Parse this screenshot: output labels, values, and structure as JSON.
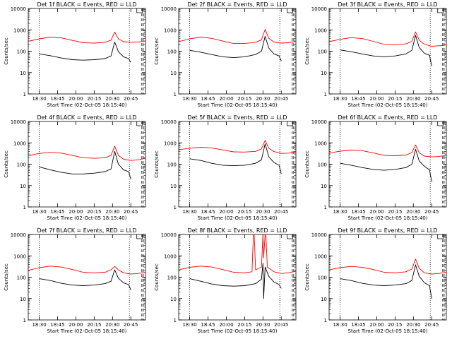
{
  "window": {
    "title": ""
  },
  "chart_data": [
    {
      "type": "line",
      "title": "Det 1f BLACK = Events, RED = LLD",
      "ylabel": "Counts/sec",
      "xlabel": "Start Time (02-Oct-05 18:15:40)",
      "yscale": "log",
      "ylim": [
        1,
        10000
      ],
      "yticks": [
        "1",
        "10",
        "100",
        "1000",
        "10000"
      ],
      "xticks": [
        "18:30",
        "18:45",
        "20:00",
        "20:15",
        "20:30",
        "20:45"
      ],
      "xlim": [
        "18:15",
        "20:55"
      ],
      "grid": false,
      "series": [
        {
          "name": "Events",
          "color": "#000000",
          "x": [
            "18:30",
            "18:45",
            "19:00",
            "19:15",
            "19:30",
            "19:45",
            "20:00",
            "20:08",
            "20:13",
            "20:18",
            "20:25",
            "20:32",
            "20:35"
          ],
          "y": [
            75,
            62,
            48,
            40,
            38,
            40,
            45,
            60,
            270,
            95,
            55,
            45,
            30
          ]
        },
        {
          "name": "LLD",
          "color": "#ff0000",
          "x": [
            "18:15",
            "18:30",
            "18:45",
            "19:00",
            "19:15",
            "19:30",
            "19:45",
            "20:00",
            "20:08",
            "20:13",
            "20:18",
            "20:25",
            "20:35",
            "20:45",
            "20:55"
          ],
          "y": [
            290,
            380,
            460,
            420,
            320,
            250,
            240,
            260,
            330,
            780,
            380,
            280,
            260,
            270,
            300
          ]
        }
      ],
      "vlines_dotted": [
        "18:30",
        "20:33"
      ],
      "vlines_dashed": [
        "20:50",
        "20:52"
      ]
    },
    {
      "type": "line",
      "title": "Det 2f BLACK = Events, RED = LLD",
      "ylabel": "Counts/sec",
      "xlabel": "Start Time (02-Oct-05 18:15:40)",
      "yscale": "log",
      "ylim": [
        1,
        10000
      ],
      "yticks": [
        "1",
        "10",
        "100",
        "1000",
        "10000"
      ],
      "xticks": [
        "18:30",
        "18:45",
        "20:00",
        "20:15",
        "20:30",
        "20:45"
      ],
      "xlim": [
        "18:15",
        "20:55"
      ],
      "grid": false,
      "series": [
        {
          "name": "Events",
          "color": "#000000",
          "x": [
            "18:30",
            "18:45",
            "19:00",
            "19:15",
            "19:30",
            "19:45",
            "20:00",
            "20:08",
            "20:13",
            "20:18",
            "20:25",
            "20:32",
            "20:35"
          ],
          "y": [
            110,
            90,
            70,
            55,
            50,
            55,
            70,
            100,
            500,
            140,
            75,
            60,
            35
          ]
        },
        {
          "name": "LLD",
          "color": "#ff0000",
          "x": [
            "18:15",
            "18:30",
            "18:45",
            "19:00",
            "19:15",
            "19:30",
            "19:45",
            "20:00",
            "20:08",
            "20:13",
            "20:18",
            "20:25",
            "20:35",
            "20:45",
            "20:55"
          ],
          "y": [
            280,
            380,
            460,
            400,
            300,
            230,
            230,
            260,
            340,
            1050,
            400,
            270,
            240,
            250,
            290
          ]
        }
      ],
      "vlines_dotted": [
        "18:30",
        "20:33"
      ],
      "vlines_dashed": [
        "20:50",
        "20:52"
      ]
    },
    {
      "type": "line",
      "title": "Det 3f BLACK = Events, RED = LLD",
      "ylabel": "Counts/sec",
      "xlabel": "Start Time (02-Oct-05 18:15:40)",
      "yscale": "log",
      "ylim": [
        1,
        10000
      ],
      "yticks": [
        "1",
        "10",
        "100",
        "1000",
        "10000"
      ],
      "xticks": [
        "18:30",
        "18:45",
        "20:00",
        "20:15",
        "20:30",
        "20:45"
      ],
      "xlim": [
        "18:15",
        "20:55"
      ],
      "grid": false,
      "series": [
        {
          "name": "Events",
          "color": "#000000",
          "x": [
            "18:30",
            "18:45",
            "19:00",
            "19:15",
            "19:30",
            "19:45",
            "20:00",
            "20:08",
            "20:13",
            "20:18",
            "20:25",
            "20:32",
            "20:35"
          ],
          "y": [
            115,
            95,
            75,
            60,
            55,
            60,
            75,
            110,
            550,
            150,
            80,
            65,
            20
          ]
        },
        {
          "name": "LLD",
          "color": "#ff0000",
          "x": [
            "18:15",
            "18:30",
            "18:45",
            "19:00",
            "19:15",
            "19:30",
            "19:45",
            "20:00",
            "20:08",
            "20:13",
            "20:18",
            "20:25",
            "20:35",
            "20:45",
            "20:55"
          ],
          "y": [
            280,
            360,
            430,
            390,
            290,
            210,
            200,
            220,
            290,
            800,
            330,
            210,
            170,
            180,
            200
          ]
        }
      ],
      "vlines_dotted": [
        "18:30",
        "20:33"
      ],
      "vlines_dashed": [
        "20:50",
        "20:52"
      ]
    },
    {
      "type": "line",
      "title": "Det 4f BLACK = Events, RED = LLD",
      "ylabel": "Counts/sec",
      "xlabel": "Start Time (02-Oct-05 18:15:40)",
      "yscale": "log",
      "ylim": [
        1,
        10000
      ],
      "yticks": [
        "1",
        "10",
        "100",
        "1000",
        "10000"
      ],
      "xticks": [
        "18:30",
        "18:45",
        "20:00",
        "20:15",
        "20:30",
        "20:45"
      ],
      "xlim": [
        "18:15",
        "20:55"
      ],
      "grid": false,
      "series": [
        {
          "name": "Events",
          "color": "#000000",
          "x": [
            "18:30",
            "18:45",
            "19:00",
            "19:15",
            "19:30",
            "19:45",
            "20:00",
            "20:08",
            "20:13",
            "20:18",
            "20:25",
            "20:32",
            "20:35"
          ],
          "y": [
            75,
            55,
            42,
            35,
            35,
            38,
            45,
            60,
            400,
            100,
            55,
            45,
            20
          ]
        },
        {
          "name": "LLD",
          "color": "#ff0000",
          "x": [
            "18:15",
            "18:30",
            "18:45",
            "19:00",
            "19:15",
            "19:30",
            "19:45",
            "20:00",
            "20:08",
            "20:13",
            "20:18",
            "20:25",
            "20:35",
            "20:45",
            "20:55"
          ],
          "y": [
            250,
            320,
            360,
            330,
            260,
            200,
            190,
            200,
            260,
            700,
            260,
            170,
            150,
            160,
            190
          ]
        }
      ],
      "vlines_dotted": [
        "18:30",
        "20:33"
      ],
      "vlines_dashed": [
        "20:50",
        "20:52"
      ]
    },
    {
      "type": "line",
      "title": "Det 5f BLACK = Events, RED = LLD",
      "ylabel": "Counts/sec",
      "xlabel": "Start Time (02-Oct-05 18:15:40)",
      "yscale": "log",
      "ylim": [
        1,
        10000
      ],
      "yticks": [
        "1",
        "10",
        "100",
        "1000",
        "10000"
      ],
      "xticks": [
        "18:30",
        "18:45",
        "20:00",
        "20:15",
        "20:30",
        "20:45"
      ],
      "xlim": [
        "18:15",
        "20:55"
      ],
      "grid": false,
      "series": [
        {
          "name": "Events",
          "color": "#000000",
          "x": [
            "18:30",
            "18:45",
            "19:00",
            "19:15",
            "19:30",
            "19:45",
            "20:00",
            "20:08",
            "20:13",
            "20:18",
            "20:25",
            "20:32",
            "20:35"
          ],
          "y": [
            180,
            150,
            110,
            90,
            85,
            90,
            110,
            160,
            900,
            220,
            120,
            90,
            35
          ]
        },
        {
          "name": "LLD",
          "color": "#ff0000",
          "x": [
            "18:15",
            "18:30",
            "18:45",
            "19:00",
            "19:15",
            "19:30",
            "19:45",
            "20:00",
            "20:08",
            "20:13",
            "20:18",
            "20:25",
            "20:35",
            "20:45",
            "20:55"
          ],
          "y": [
            480,
            560,
            620,
            580,
            470,
            380,
            370,
            400,
            520,
            1300,
            560,
            390,
            320,
            330,
            370
          ]
        }
      ],
      "vlines_dotted": [
        "18:30",
        "20:33"
      ],
      "vlines_dashed": [
        "20:50",
        "20:52"
      ]
    },
    {
      "type": "line",
      "title": "Det 6f BLACK = Events, RED = LLD",
      "ylabel": "Counts/sec",
      "xlabel": "Start Time (02-Oct-05 18:15:40)",
      "yscale": "log",
      "ylim": [
        1,
        10000
      ],
      "yticks": [
        "1",
        "10",
        "100",
        "1000",
        "10000"
      ],
      "xticks": [
        "18:30",
        "18:45",
        "20:00",
        "20:15",
        "20:30",
        "20:45"
      ],
      "xlim": [
        "18:15",
        "20:55"
      ],
      "grid": false,
      "series": [
        {
          "name": "Events",
          "color": "#000000",
          "x": [
            "18:30",
            "18:45",
            "19:00",
            "19:15",
            "19:30",
            "19:45",
            "20:00",
            "20:08",
            "20:13",
            "20:18",
            "20:25",
            "20:32",
            "20:35"
          ],
          "y": [
            110,
            90,
            70,
            57,
            52,
            57,
            70,
            100,
            500,
            140,
            80,
            55,
            15
          ]
        },
        {
          "name": "LLD",
          "color": "#ff0000",
          "x": [
            "18:15",
            "18:30",
            "18:45",
            "19:00",
            "19:15",
            "19:30",
            "19:45",
            "20:00",
            "20:08",
            "20:13",
            "20:18",
            "20:25",
            "20:35",
            "20:45",
            "20:55"
          ],
          "y": [
            330,
            410,
            460,
            430,
            340,
            260,
            250,
            270,
            350,
            800,
            340,
            240,
            220,
            230,
            260
          ]
        }
      ],
      "vlines_dotted": [
        "18:30",
        "20:33"
      ],
      "vlines_dashed": [
        "20:50",
        "20:52"
      ]
    },
    {
      "type": "line",
      "title": "Det 7f BLACK = Events, RED = LLD",
      "ylabel": "Counts/sec",
      "xlabel": "Start Time (02-Oct-05 18:15:40)",
      "yscale": "log",
      "ylim": [
        1,
        10000
      ],
      "yticks": [
        "1",
        "10",
        "100",
        "1000",
        "10000"
      ],
      "xticks": [
        "18:30",
        "18:45",
        "20:00",
        "20:15",
        "20:30",
        "20:45"
      ],
      "xlim": [
        "18:15",
        "20:55"
      ],
      "grid": false,
      "series": [
        {
          "name": "Events",
          "color": "#000000",
          "x": [
            "18:30",
            "18:45",
            "19:00",
            "19:15",
            "19:30",
            "19:45",
            "20:00",
            "20:08",
            "20:13",
            "20:18",
            "20:25",
            "20:32",
            "20:35"
          ],
          "y": [
            85,
            70,
            52,
            43,
            40,
            43,
            50,
            65,
            220,
            90,
            55,
            45,
            25
          ]
        },
        {
          "name": "LLD",
          "color": "#ff0000",
          "x": [
            "18:15",
            "18:30",
            "18:45",
            "19:00",
            "19:15",
            "19:30",
            "19:45",
            "20:00",
            "20:08",
            "20:13",
            "20:18",
            "20:25",
            "20:35",
            "20:45",
            "20:55"
          ],
          "y": [
            210,
            280,
            330,
            300,
            230,
            170,
            160,
            170,
            220,
            320,
            220,
            160,
            140,
            150,
            170
          ]
        }
      ],
      "vlines_dotted": [
        "18:30",
        "20:33"
      ],
      "vlines_dashed": [
        "20:50",
        "20:52"
      ]
    },
    {
      "type": "line",
      "title": "Det 8f BLACK = Events, RED = LLD",
      "ylabel": "Counts/sec",
      "xlabel": "Start Time (02-Oct-05 18:15:40)",
      "yscale": "log",
      "ylim": [
        1,
        10000
      ],
      "yticks": [
        "1",
        "10",
        "100",
        "1000",
        "10000"
      ],
      "xticks": [
        "18:30",
        "18:45",
        "20:00",
        "20:15",
        "20:30",
        "20:45"
      ],
      "xlim": [
        "18:15",
        "20:55"
      ],
      "grid": false,
      "series": [
        {
          "name": "Events",
          "color": "#000000",
          "x": [
            "18:30",
            "18:45",
            "19:00",
            "19:15",
            "19:30",
            "19:45",
            "20:00",
            "20:08",
            "20:10",
            "20:11",
            "20:13",
            "20:18",
            "20:25",
            "20:32",
            "20:35"
          ],
          "y": [
            85,
            65,
            48,
            40,
            38,
            40,
            50,
            80,
            450,
            10,
            300,
            110,
            60,
            45,
            30
          ]
        },
        {
          "name": "LLD",
          "color": "#ff0000",
          "x": [
            "18:15",
            "18:30",
            "18:45",
            "19:00",
            "19:15",
            "19:30",
            "19:45",
            "19:55",
            "19:57",
            "19:58",
            "20:00",
            "20:08",
            "20:10",
            "20:11",
            "20:13",
            "20:14",
            "20:16",
            "20:25",
            "20:35",
            "20:45",
            "20:55"
          ],
          "y": [
            220,
            290,
            330,
            300,
            230,
            170,
            160,
            180,
            10000,
            10000,
            220,
            300,
            10000,
            800,
            10000,
            10000,
            300,
            180,
            150,
            160,
            190
          ]
        }
      ],
      "vlines_dotted": [
        "18:30",
        "20:33"
      ],
      "vlines_dashed": [
        "20:50",
        "20:52"
      ]
    },
    {
      "type": "line",
      "title": "Det 9f BLACK = Events, RED = LLD",
      "ylabel": "Counts/sec",
      "xlabel": "Start Time (02-Oct-05 18:15:40)",
      "yscale": "log",
      "ylim": [
        1,
        10000
      ],
      "yticks": [
        "1",
        "10",
        "100",
        "1000",
        "10000"
      ],
      "xticks": [
        "18:30",
        "18:45",
        "20:00",
        "20:15",
        "20:30",
        "20:45"
      ],
      "xlim": [
        "18:15",
        "20:55"
      ],
      "grid": false,
      "series": [
        {
          "name": "Events",
          "color": "#000000",
          "x": [
            "18:30",
            "18:45",
            "19:00",
            "19:15",
            "19:30",
            "19:45",
            "20:00",
            "20:08",
            "20:13",
            "20:18",
            "20:25",
            "20:32",
            "20:35"
          ],
          "y": [
            85,
            70,
            52,
            43,
            40,
            43,
            50,
            70,
            380,
            110,
            55,
            40,
            10
          ]
        },
        {
          "name": "LLD",
          "color": "#ff0000",
          "x": [
            "18:15",
            "18:30",
            "18:45",
            "19:00",
            "19:15",
            "19:30",
            "19:45",
            "20:00",
            "20:08",
            "20:13",
            "20:18",
            "20:25",
            "20:35",
            "20:45",
            "20:55"
          ],
          "y": [
            220,
            280,
            320,
            290,
            230,
            170,
            160,
            180,
            240,
            700,
            260,
            160,
            140,
            150,
            170
          ]
        }
      ],
      "vlines_dotted": [
        "18:30",
        "20:33"
      ],
      "vlines_dashed": [
        "20:50",
        "20:52"
      ]
    }
  ]
}
